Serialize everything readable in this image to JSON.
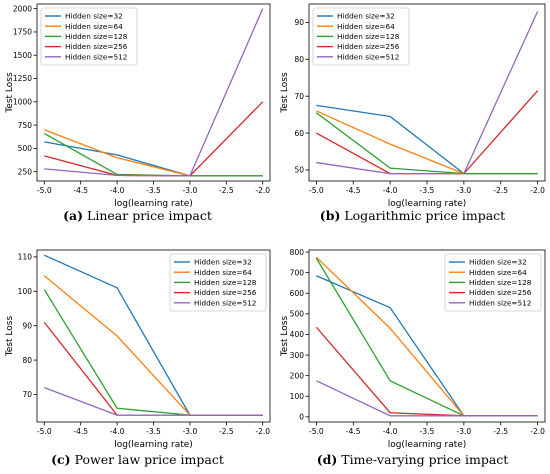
{
  "chart_data": [
    {
      "type": "line",
      "caption_letter": "(a)",
      "caption_text": "Linear price impact",
      "xlabel": "log(learning rate)",
      "ylabel": "Test Loss",
      "x": [
        -5.0,
        -4.0,
        -3.0,
        -2.0
      ],
      "xlim": [
        -5.1,
        -1.9
      ],
      "ylim": [
        150,
        2050
      ],
      "xticks": [
        -5.0,
        -4.5,
        -4.0,
        -3.5,
        -3.0,
        -2.5,
        -2.0
      ],
      "yticks": [
        250,
        500,
        750,
        1000,
        1250,
        1500,
        1750,
        2000
      ],
      "legend": "top-left",
      "grid": false,
      "series": [
        {
          "name": "Hidden size=32",
          "color": "#1f77b4",
          "values": [
            570,
            430,
            205,
            205
          ]
        },
        {
          "name": "Hidden size=64",
          "color": "#ff7f0e",
          "values": [
            700,
            400,
            205,
            205
          ]
        },
        {
          "name": "Hidden size=128",
          "color": "#2ca02c",
          "values": [
            660,
            220,
            205,
            205
          ]
        },
        {
          "name": "Hidden size=256",
          "color": "#d62728",
          "values": [
            420,
            210,
            205,
            1000
          ]
        },
        {
          "name": "Hidden size=512",
          "color": "#9467bd",
          "values": [
            280,
            210,
            205,
            2000
          ]
        }
      ]
    },
    {
      "type": "line",
      "caption_letter": "(b)",
      "caption_text": "Logarithmic price impact",
      "xlabel": "log(learning rate)",
      "ylabel": "Test Loss",
      "x": [
        -5.0,
        -4.0,
        -3.0,
        -2.0
      ],
      "xlim": [
        -5.1,
        -1.9
      ],
      "ylim": [
        47,
        95
      ],
      "xticks": [
        -5.0,
        -4.5,
        -4.0,
        -3.5,
        -3.0,
        -2.5,
        -2.0
      ],
      "yticks": [
        50,
        60,
        70,
        80,
        90
      ],
      "legend": "top-left",
      "grid": false,
      "series": [
        {
          "name": "Hidden size=32",
          "color": "#1f77b4",
          "values": [
            67.5,
            64.5,
            49,
            49
          ]
        },
        {
          "name": "Hidden size=64",
          "color": "#ff7f0e",
          "values": [
            66,
            57,
            49,
            49
          ]
        },
        {
          "name": "Hidden size=128",
          "color": "#2ca02c",
          "values": [
            65.5,
            50.5,
            49,
            49
          ]
        },
        {
          "name": "Hidden size=256",
          "color": "#d62728",
          "values": [
            60,
            49,
            49,
            71.5
          ]
        },
        {
          "name": "Hidden size=512",
          "color": "#9467bd",
          "values": [
            52,
            49,
            49,
            93
          ]
        }
      ]
    },
    {
      "type": "line",
      "caption_letter": "(c)",
      "caption_text": "Power law price impact",
      "xlabel": "log(learning rate)",
      "ylabel": "Test Loss",
      "x": [
        -5.0,
        -4.0,
        -3.0,
        -2.0
      ],
      "xlim": [
        -5.1,
        -1.9
      ],
      "ylim": [
        62,
        112
      ],
      "xticks": [
        -5.0,
        -4.5,
        -4.0,
        -3.5,
        -3.0,
        -2.5,
        -2.0
      ],
      "yticks": [
        70,
        80,
        90,
        100,
        110
      ],
      "legend": "top-right",
      "grid": false,
      "series": [
        {
          "name": "Hidden size=32",
          "color": "#1f77b4",
          "values": [
            110.5,
            101,
            64,
            64
          ]
        },
        {
          "name": "Hidden size=64",
          "color": "#ff7f0e",
          "values": [
            104.5,
            87,
            64,
            64
          ]
        },
        {
          "name": "Hidden size=128",
          "color": "#2ca02c",
          "values": [
            100.5,
            66,
            64,
            64
          ]
        },
        {
          "name": "Hidden size=256",
          "color": "#d62728",
          "values": [
            91,
            64,
            64,
            64
          ]
        },
        {
          "name": "Hidden size=512",
          "color": "#9467bd",
          "values": [
            72,
            64,
            64,
            64
          ]
        }
      ]
    },
    {
      "type": "line",
      "caption_letter": "(d)",
      "caption_text": "Time-varying price impact",
      "xlabel": "log(learning rate)",
      "ylabel": "Test Loss",
      "x": [
        -5.0,
        -4.0,
        -3.0,
        -2.0
      ],
      "xlim": [
        -5.1,
        -1.9
      ],
      "ylim": [
        -25,
        810
      ],
      "xticks": [
        -5.0,
        -4.5,
        -4.0,
        -3.5,
        -3.0,
        -2.5,
        -2.0
      ],
      "yticks": [
        0,
        100,
        200,
        300,
        400,
        500,
        600,
        700,
        800
      ],
      "legend": "top-right",
      "grid": false,
      "series": [
        {
          "name": "Hidden size=32",
          "color": "#1f77b4",
          "values": [
            685,
            530,
            5,
            5
          ]
        },
        {
          "name": "Hidden size=64",
          "color": "#ff7f0e",
          "values": [
            775,
            430,
            5,
            5
          ]
        },
        {
          "name": "Hidden size=128",
          "color": "#2ca02c",
          "values": [
            770,
            175,
            5,
            5
          ]
        },
        {
          "name": "Hidden size=256",
          "color": "#d62728",
          "values": [
            435,
            20,
            5,
            5
          ]
        },
        {
          "name": "Hidden size=512",
          "color": "#9467bd",
          "values": [
            175,
            5,
            5,
            5
          ]
        }
      ]
    }
  ]
}
